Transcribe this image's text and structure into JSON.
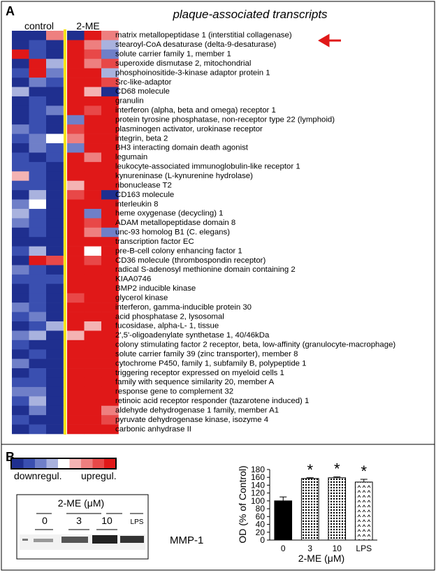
{
  "panel_a": {
    "label": "A",
    "title": "plaque-associated transcripts",
    "group_labels": [
      "control",
      "2-ME"
    ],
    "genes": [
      "matrix metallopeptidase 1 (interstitial collagenase)",
      "stearoyl-CoA desaturase (delta-9-desaturase)",
      "solute carrier family 1, member 1",
      "superoxide dismutase 2, mitochondrial",
      "phosphoinositide-3-kinase adaptor protein 1",
      "Src-like-adaptor",
      "CD68 molecule",
      "granulin",
      "interferon (alpha, beta and omega) receptor 1",
      "protein tyrosine phosphatase, non-receptor type 22 (lymphoid)",
      "plasminogen activator, urokinase receptor",
      "integrin, beta 2",
      "BH3 interacting domain death agonist",
      "legumain",
      "leukocyte-associated immunoglobulin-like receptor 1",
      "kynureninase (L-kynurenine hydrolase)",
      "ribonuclease T2",
      "CD163 molecule",
      "interleukin 8",
      "heme oxygenase (decycling) 1",
      "ADAM metallopeptidase domain 8",
      "unc-93 homolog B1 (C. elegans)",
      "transcription factor EC",
      "pre-B-cell colony enhancing factor 1",
      "CD36 molecule (thrombospondin receptor)",
      "radical S-adenosyl methionine domain containing 2",
      "KIAA0746",
      "BMP2 inducible kinase",
      "glycerol kinase",
      "interferon, gamma-inducible protein 30",
      "acid phosphatase 2, lysosomal",
      "fucosidase, alpha-L- 1, tissue",
      "2',5'-oligoadenylate synthetase 1, 40/46kDa",
      "colony stimulating factor 2 receptor, beta, low-affinity (granulocyte-macrophage)",
      "solute carrier family 39 (zinc transporter), member 8",
      "cytochrome P450, family 1, subfamily B, polypeptide 1",
      "triggering receptor expressed on myeloid cells 1",
      "family with sequence similarity 20, member A",
      "response gene to complement 32",
      "retinoic acid receptor responder (tazarotene induced) 1",
      "aldehyde dehydrogenase 1 family, member A1",
      "pyruvate dehydrogenase kinase, isozyme 4",
      "carbonic anhydrase II"
    ],
    "heatmap": {
      "colors": [
        "#1f2f8f",
        "#3a4fb0",
        "#6f7fc8",
        "#a9b2de",
        "#ffffff",
        "#f4b3b3",
        "#ee7f7f",
        "#e84848",
        "#e01818"
      ],
      "values": [
        [
          -4,
          -4,
          2,
          -4,
          4,
          2
        ],
        [
          -4,
          -3,
          -4,
          4,
          2,
          -1
        ],
        [
          4,
          -3,
          -4,
          4,
          3,
          -2
        ],
        [
          -4,
          4,
          -1,
          4,
          2,
          3
        ],
        [
          -3,
          4,
          -2,
          4,
          4,
          -1
        ],
        [
          -4,
          -2,
          -3,
          4,
          4,
          3
        ],
        [
          -1,
          -4,
          -4,
          4,
          1,
          -4
        ],
        [
          -4,
          -3,
          -4,
          4,
          4,
          4
        ],
        [
          -4,
          -3,
          -2,
          4,
          3,
          4
        ],
        [
          -4,
          -3,
          -4,
          -2,
          4,
          4
        ],
        [
          -2,
          -3,
          -4,
          3,
          4,
          4
        ],
        [
          -3,
          -2,
          0,
          2,
          4,
          4
        ],
        [
          -4,
          -2,
          -3,
          -2,
          4,
          4
        ],
        [
          -3,
          -4,
          -3,
          4,
          2,
          4
        ],
        [
          -3,
          -3,
          -4,
          4,
          4,
          4
        ],
        [
          1,
          -3,
          -4,
          4,
          4,
          4
        ],
        [
          -3,
          -3,
          -4,
          1,
          4,
          4
        ],
        [
          -4,
          -1,
          -4,
          3,
          4,
          -4
        ],
        [
          -2,
          0,
          -4,
          4,
          4,
          4
        ],
        [
          -1,
          -3,
          -4,
          4,
          -2,
          4
        ],
        [
          -2,
          -3,
          -4,
          4,
          3,
          4
        ],
        [
          -4,
          -3,
          -4,
          4,
          2,
          -2
        ],
        [
          -4,
          -4,
          -4,
          4,
          4,
          4
        ],
        [
          -3,
          -1,
          -4,
          4,
          0,
          4
        ],
        [
          -4,
          4,
          3,
          4,
          3,
          4
        ],
        [
          -2,
          -3,
          -4,
          4,
          4,
          4
        ],
        [
          -3,
          -3,
          -3,
          4,
          4,
          4
        ],
        [
          -4,
          -3,
          -4,
          4,
          4,
          4
        ],
        [
          -4,
          -3,
          -4,
          3,
          4,
          4
        ],
        [
          -2,
          -3,
          -4,
          4,
          4,
          4
        ],
        [
          -3,
          -2,
          -4,
          4,
          4,
          4
        ],
        [
          -4,
          -3,
          -1,
          4,
          1,
          4
        ],
        [
          -2,
          -1,
          -4,
          1,
          4,
          4
        ],
        [
          -3,
          -4,
          -4,
          4,
          4,
          4
        ],
        [
          -4,
          -3,
          -4,
          4,
          4,
          4
        ],
        [
          -2,
          -4,
          -4,
          4,
          4,
          4
        ],
        [
          -4,
          -3,
          -4,
          4,
          4,
          4
        ],
        [
          -3,
          -3,
          -4,
          4,
          4,
          4
        ],
        [
          -2,
          -2,
          -4,
          4,
          4,
          4
        ],
        [
          -3,
          -1,
          -4,
          4,
          4,
          4
        ],
        [
          -4,
          -2,
          -4,
          4,
          4,
          2
        ],
        [
          -3,
          -4,
          -4,
          4,
          4,
          3
        ],
        [
          -4,
          -3,
          -4,
          4,
          4,
          4
        ]
      ]
    },
    "legend": {
      "low": "downregul.",
      "high": "upregul."
    }
  },
  "panel_b": {
    "label": "B",
    "blot": {
      "treatment_label": "2-ME (μM)",
      "lanes": [
        "0",
        "3",
        "10",
        "LPS"
      ],
      "band_label": "MMP-1"
    }
  },
  "chart_data": {
    "type": "bar",
    "ylabel": "OD (% of Control)",
    "xlabel": "2-ME (μM)",
    "categories": [
      "0",
      "3",
      "10",
      "LPS"
    ],
    "values": [
      100,
      157,
      159,
      148
    ],
    "errors": [
      10,
      2,
      2,
      7
    ],
    "markers": [
      null,
      "*",
      "*",
      "*"
    ],
    "patterns": [
      "solid",
      "dots",
      "dots",
      "sparse"
    ],
    "ylim": [
      0,
      180
    ],
    "yticks": [
      0,
      20,
      40,
      60,
      80,
      100,
      120,
      140,
      160,
      180
    ]
  }
}
